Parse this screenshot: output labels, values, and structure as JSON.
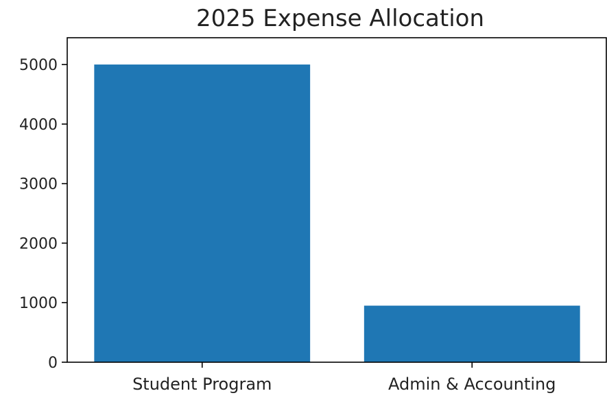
{
  "chart_data": {
    "type": "bar",
    "title": "2025 Expense Allocation",
    "xlabel": "",
    "ylabel": "",
    "categories": [
      "Student Program",
      "Admin & Accounting"
    ],
    "values": [
      5000,
      950
    ],
    "ylim": [
      0,
      5450
    ],
    "yticks": [
      0,
      1000,
      2000,
      3000,
      4000,
      5000
    ],
    "bar_color": "#1f77b4",
    "grid": false,
    "legend": "none"
  }
}
